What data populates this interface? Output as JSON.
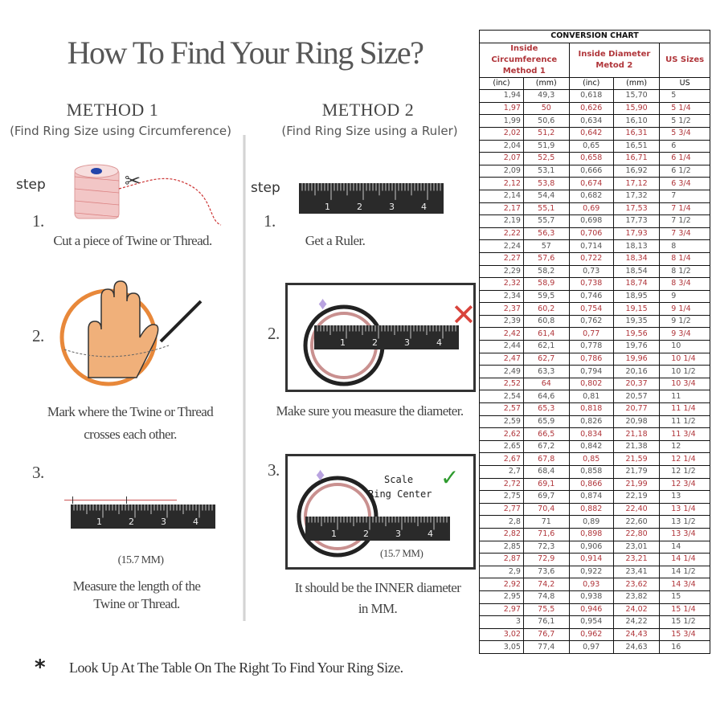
{
  "title": "How To Find Your Ring Size?",
  "method1": {
    "heading": "METHOD 1",
    "subtitle": "(Find Ring Size using Circumference)",
    "step_label": "step",
    "steps": [
      {
        "num": "1.",
        "text": [
          "Cut a piece of  Twine or Thread."
        ]
      },
      {
        "num": "2.",
        "text": [
          "Mark where the Twine or Thread",
          "crosses each other."
        ]
      },
      {
        "num": "3.",
        "measure": "(15.7 MM)",
        "text": [
          "Measure the length of the",
          "Twine or Thread."
        ]
      }
    ]
  },
  "method2": {
    "heading": "METHOD 2",
    "subtitle": "(Find Ring Size using a Ruler)",
    "step_label": "step",
    "steps": [
      {
        "num": "1.",
        "text": [
          "Get a Ruler."
        ]
      },
      {
        "num": "2.",
        "text": [
          "Make sure you measure the diameter."
        ]
      },
      {
        "num": "3.",
        "scale_label": "Scale",
        "center_label": "Ring Center",
        "measure": "(15.7 MM)",
        "text": [
          "It should be the INNER diameter",
          "in MM."
        ]
      }
    ]
  },
  "ruler_numbers": [
    "1",
    "2",
    "3",
    "4"
  ],
  "footer": {
    "star": "*",
    "text": "Look Up At The Table On The Right To Find Your Ring Size."
  },
  "colors": {
    "red": "#b0353a",
    "orange": "#e8883a",
    "check": "#2e9b2e",
    "cross": "#d9443c"
  },
  "table": {
    "title": "CONVERSION CHART",
    "group1": [
      "Inside Circumference",
      "Method 1"
    ],
    "group2": [
      "Inside Diameter",
      "Metod 2"
    ],
    "group3": "US Sizes",
    "units": [
      "(inc)",
      "(mm)",
      "(inc)",
      "(mm)",
      "US"
    ],
    "rows": [
      [
        "1,94",
        "49,3",
        "0,618",
        "15,70",
        "5"
      ],
      [
        "1,97",
        "50",
        "0,626",
        "15,90",
        "5 1/4"
      ],
      [
        "1,99",
        "50,6",
        "0,634",
        "16,10",
        "5 1/2"
      ],
      [
        "2,02",
        "51,2",
        "0,642",
        "16,31",
        "5 3/4"
      ],
      [
        "2,04",
        "51,9",
        "0,65",
        "16,51",
        "6"
      ],
      [
        "2,07",
        "52,5",
        "0,658",
        "16,71",
        "6 1/4"
      ],
      [
        "2,09",
        "53,1",
        "0,666",
        "16,92",
        "6 1/2"
      ],
      [
        "2,12",
        "53,8",
        "0,674",
        "17,12",
        "6 3/4"
      ],
      [
        "2,14",
        "54,4",
        "0,682",
        "17,32",
        "7"
      ],
      [
        "2,17",
        "55,1",
        "0,69",
        "17,53",
        "7 1/4"
      ],
      [
        "2,19",
        "55,7",
        "0,698",
        "17,73",
        "7 1/2"
      ],
      [
        "2,22",
        "56,3",
        "0,706",
        "17,93",
        "7 3/4"
      ],
      [
        "2,24",
        "57",
        "0,714",
        "18,13",
        "8"
      ],
      [
        "2,27",
        "57,6",
        "0,722",
        "18,34",
        "8 1/4"
      ],
      [
        "2,29",
        "58,2",
        "0,73",
        "18,54",
        "8 1/2"
      ],
      [
        "2,32",
        "58,9",
        "0,738",
        "18,74",
        "8 3/4"
      ],
      [
        "2,34",
        "59,5",
        "0,746",
        "18,95",
        "9"
      ],
      [
        "2,37",
        "60,2",
        "0,754",
        "19,15",
        "9 1/4"
      ],
      [
        "2,39",
        "60,8",
        "0,762",
        "19,35",
        "9 1/2"
      ],
      [
        "2,42",
        "61,4",
        "0,77",
        "19,56",
        "9 3/4"
      ],
      [
        "2,44",
        "62,1",
        "0,778",
        "19,76",
        "10"
      ],
      [
        "2,47",
        "62,7",
        "0,786",
        "19,96",
        "10 1/4"
      ],
      [
        "2,49",
        "63,3",
        "0,794",
        "20,16",
        "10 1/2"
      ],
      [
        "2,52",
        "64",
        "0,802",
        "20,37",
        "10 3/4"
      ],
      [
        "2,54",
        "64,6",
        "0,81",
        "20,57",
        "11"
      ],
      [
        "2,57",
        "65,3",
        "0,818",
        "20,77",
        "11 1/4"
      ],
      [
        "2,59",
        "65,9",
        "0,826",
        "20,98",
        "11 1/2"
      ],
      [
        "2,62",
        "66,5",
        "0,834",
        "21,18",
        "11 3/4"
      ],
      [
        "2,65",
        "67,2",
        "0,842",
        "21,38",
        "12"
      ],
      [
        "2,67",
        "67,8",
        "0,85",
        "21,59",
        "12 1/4"
      ],
      [
        "2,7",
        "68,4",
        "0,858",
        "21,79",
        "12 1/2"
      ],
      [
        "2,72",
        "69,1",
        "0,866",
        "21,99",
        "12 3/4"
      ],
      [
        "2,75",
        "69,7",
        "0,874",
        "22,19",
        "13"
      ],
      [
        "2,77",
        "70,4",
        "0,882",
        "22,40",
        "13 1/4"
      ],
      [
        "2,8",
        "71",
        "0,89",
        "22,60",
        "13 1/2"
      ],
      [
        "2,82",
        "71,6",
        "0,898",
        "22,80",
        "13 3/4"
      ],
      [
        "2,85",
        "72,3",
        "0,906",
        "23,01",
        "14"
      ],
      [
        "2,87",
        "72,9",
        "0,914",
        "23,21",
        "14 1/4"
      ],
      [
        "2,9",
        "73,6",
        "0,922",
        "23,41",
        "14 1/2"
      ],
      [
        "2,92",
        "74,2",
        "0,93",
        "23,62",
        "14 3/4"
      ],
      [
        "2,95",
        "74,8",
        "0,938",
        "23,82",
        "15"
      ],
      [
        "2,97",
        "75,5",
        "0,946",
        "24,02",
        "15 1/4"
      ],
      [
        "3",
        "76,1",
        "0,954",
        "24,22",
        "15 1/2"
      ],
      [
        "3,02",
        "76,7",
        "0,962",
        "24,43",
        "15 3/4"
      ],
      [
        "3,05",
        "77,4",
        "0,97",
        "24,63",
        "16"
      ]
    ]
  }
}
